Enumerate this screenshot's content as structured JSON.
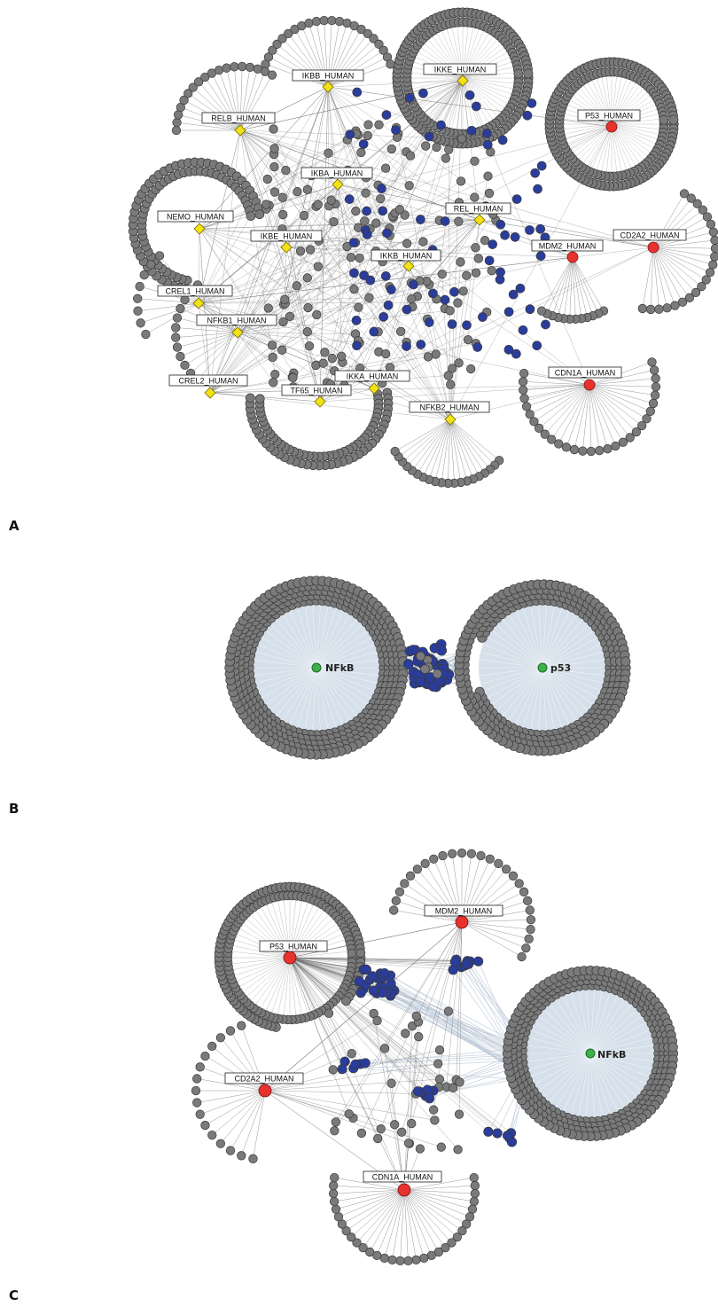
{
  "figure": {
    "panel_letters": [
      "A",
      "B",
      "C"
    ],
    "panel_a": {
      "hub_labels_yellow": [
        "IKBB_HUMAN",
        "IKKE_HUMAN",
        "RELB_HUMAN",
        "IKBA_HUMAN",
        "NEMO_HUMAN",
        "REL_HUMAN",
        "IKBE_HUMAN",
        "IKKB_HUMAN",
        "CREL1_HUMAN",
        "NFKB1_HUMAN",
        "CREL2_HUMAN",
        "IKKA_HUMAN",
        "TF65_HUMAN",
        "NFKB2_HUMAN"
      ],
      "hub_labels_red": [
        "P53_HUMAN",
        "MDM2_HUMAN",
        "CD2A2_HUMAN",
        "CDN1A_HUMAN"
      ]
    },
    "panel_b": {
      "cluster_labels": [
        "NFkB",
        "p53"
      ]
    },
    "panel_c": {
      "hub_labels": [
        "MDM2_HUMAN",
        "P53_HUMAN",
        "CD2A2_HUMAN",
        "CDN1A_HUMAN"
      ],
      "cluster_label": "NFkB"
    },
    "colors": {
      "gray_node": "#7a7a7a",
      "node_stroke": "#3a3a3a",
      "yellow_hub": "#f2e216",
      "red_hub": "#e8322e",
      "blue_node": "#2a3d9c",
      "green_center": "#3cb04a",
      "disc_fill": "#d6e0ea",
      "edge": "#6b6b6b"
    }
  }
}
